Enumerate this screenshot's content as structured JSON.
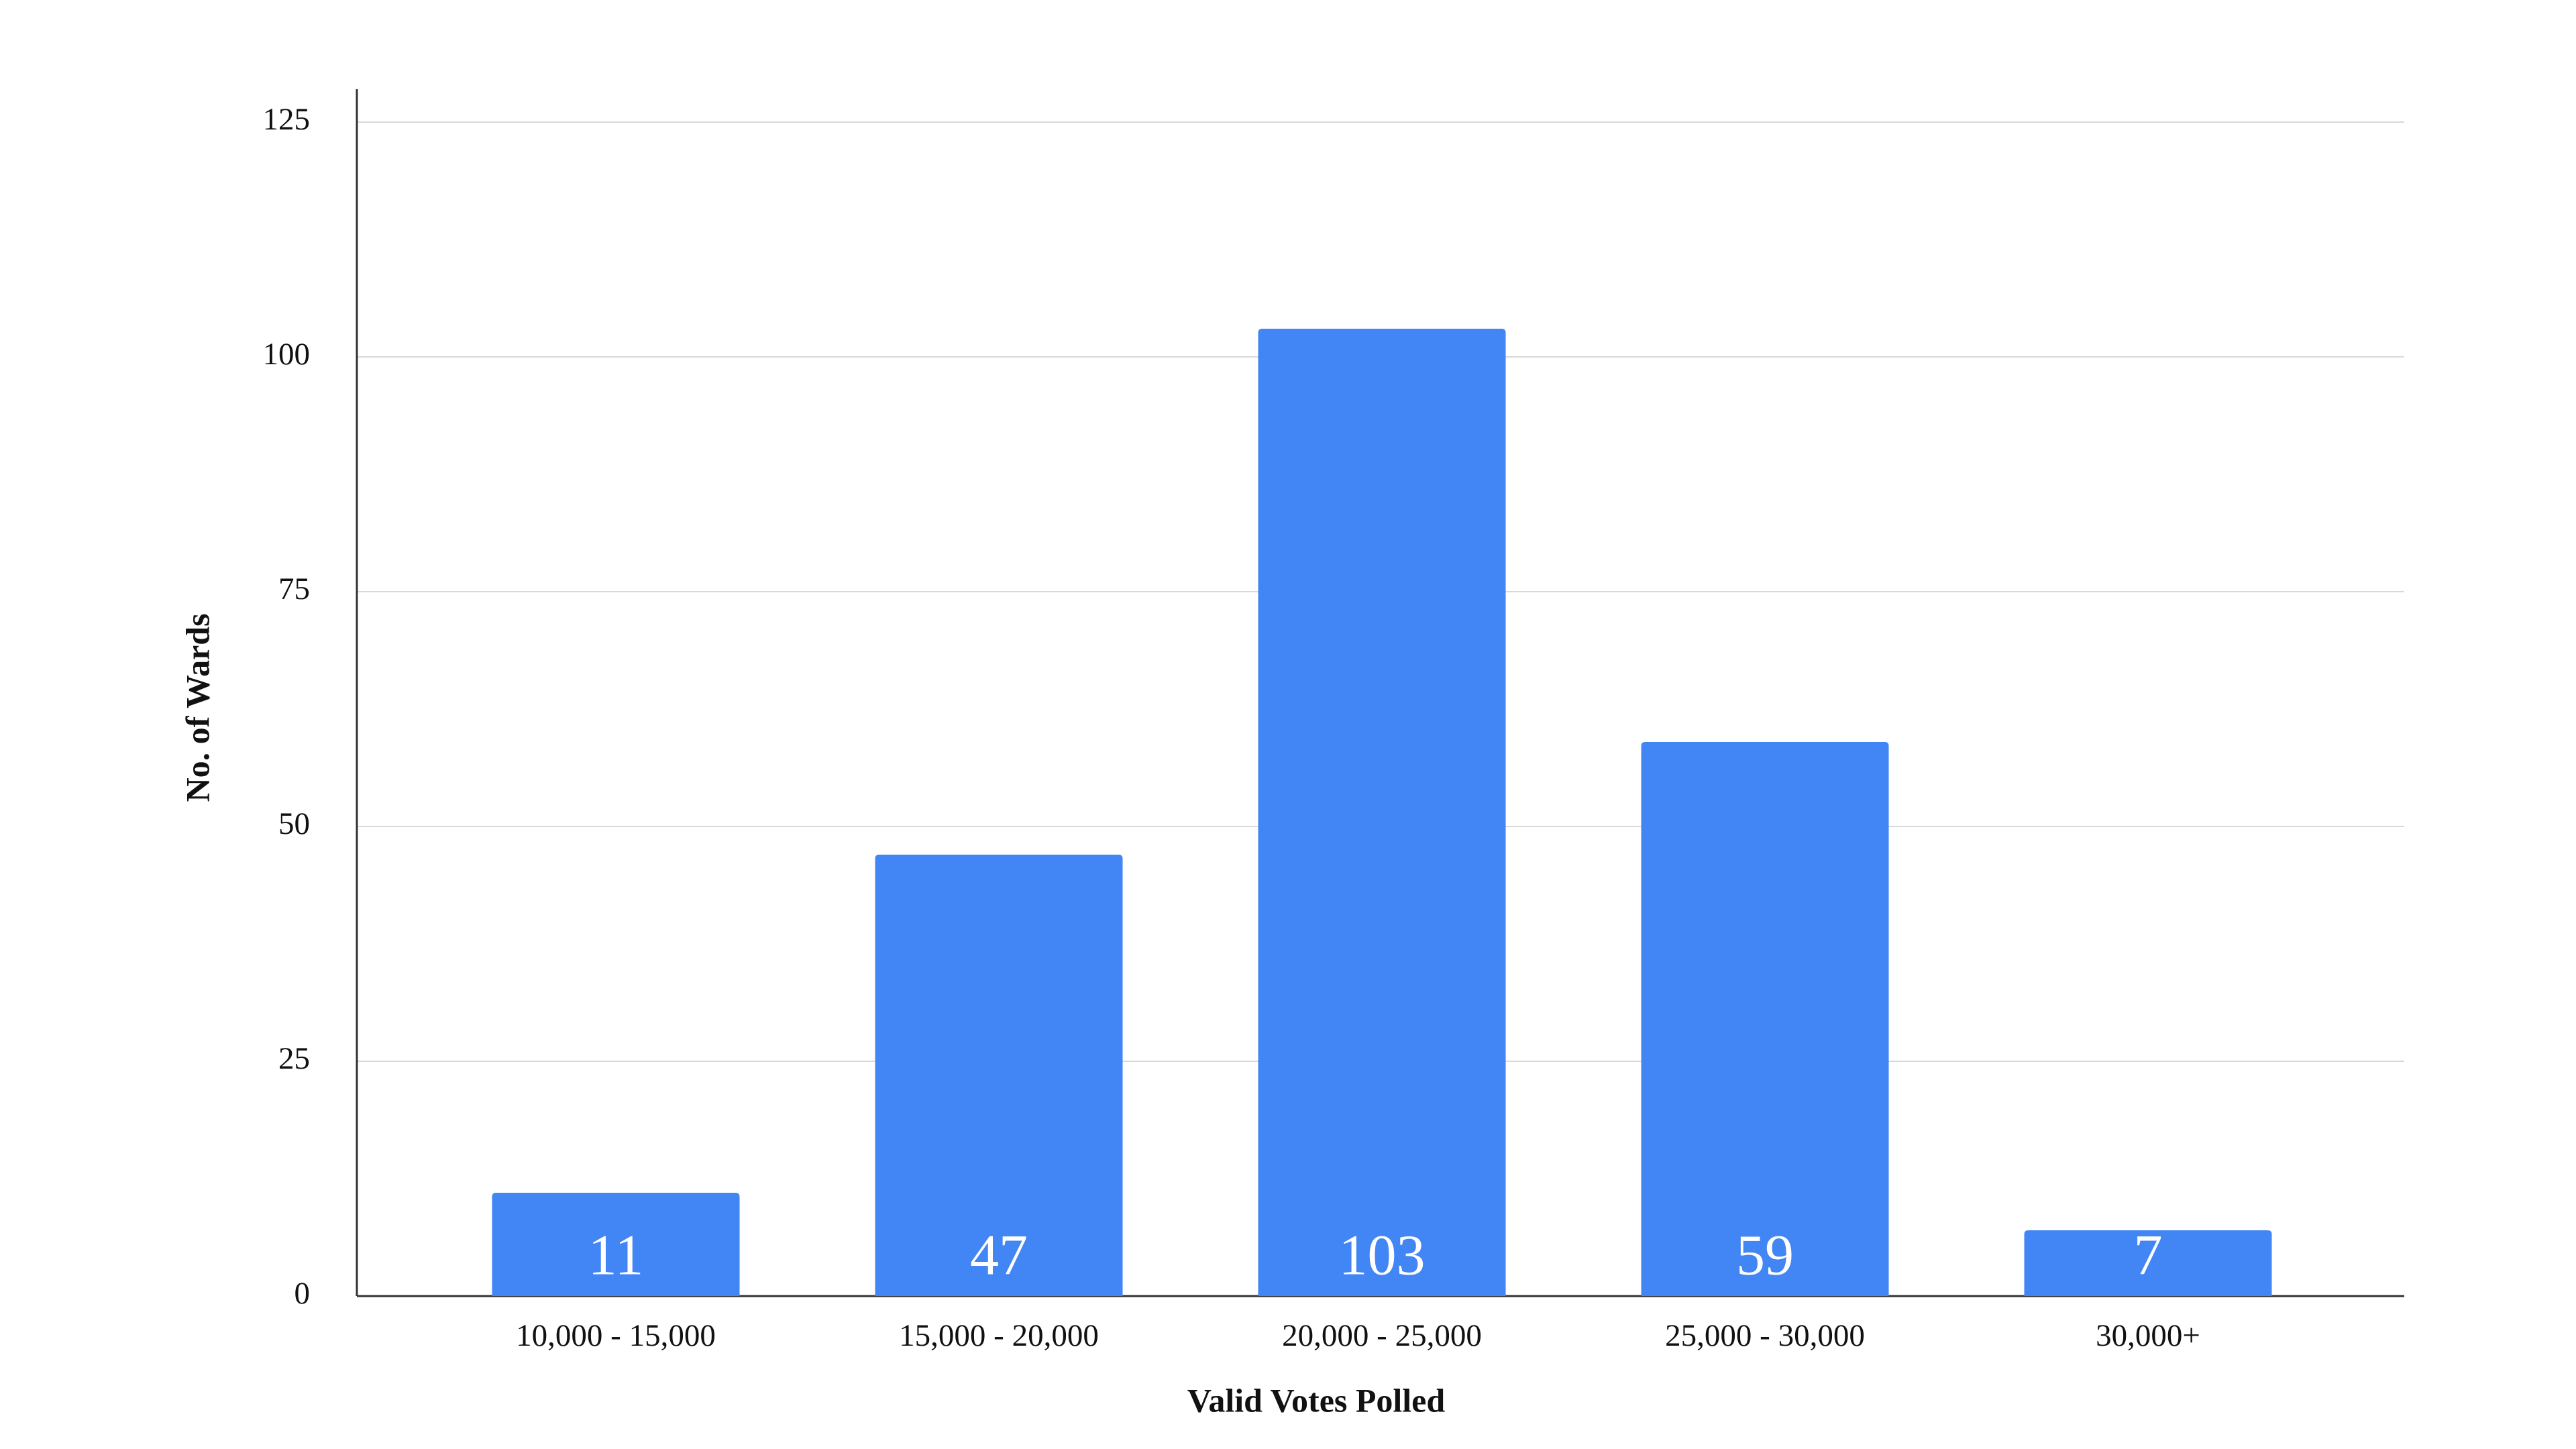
{
  "chart_data": {
    "type": "bar",
    "x_label": "Valid Votes Polled",
    "y_label": "No. of Wards",
    "categories": [
      "10,000 - 15,000",
      "15,000 - 20,000",
      "20,000 - 25,000",
      "25,000 - 30,000",
      "30,000+"
    ],
    "values": [
      11,
      47,
      103,
      59,
      7
    ],
    "color": "#4285f4",
    "ylim": [
      0,
      125
    ],
    "yticks": [
      0,
      25,
      50,
      75,
      100,
      125
    ],
    "grid": true
  }
}
